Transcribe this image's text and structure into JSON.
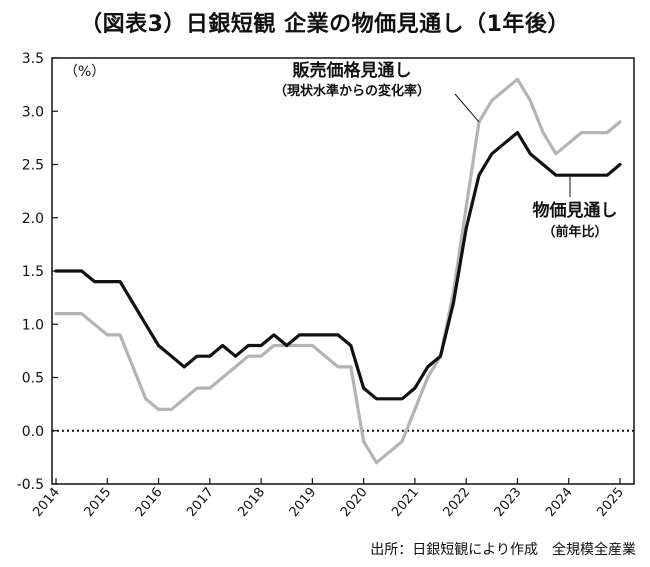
{
  "title": "（図表3）日銀短観 企業の物価見通し（1年後）",
  "source": "出所：日銀短観により作成　全規模全産業",
  "chart_data": {
    "type": "line",
    "unit_label": "（%）",
    "ylim": [
      -0.5,
      3.5
    ],
    "y_ticks": [
      "3.5",
      "3.0",
      "2.5",
      "2.0",
      "1.5",
      "1.0",
      "0.5",
      "0.0",
      "-0.5"
    ],
    "x_ticks": [
      "2014",
      "2015",
      "2016",
      "2017",
      "2018",
      "2019",
      "2020",
      "2021",
      "2022",
      "2023",
      "2024",
      "2025"
    ],
    "x": [
      "2014Q1",
      "2014Q2",
      "2014Q3",
      "2014Q4",
      "2015Q1",
      "2015Q2",
      "2015Q3",
      "2015Q4",
      "2016Q1",
      "2016Q2",
      "2016Q3",
      "2016Q4",
      "2017Q1",
      "2017Q2",
      "2017Q3",
      "2017Q4",
      "2018Q1",
      "2018Q2",
      "2018Q3",
      "2018Q4",
      "2019Q1",
      "2019Q2",
      "2019Q3",
      "2019Q4",
      "2020Q1",
      "2020Q2",
      "2020Q3",
      "2020Q4",
      "2021Q1",
      "2021Q2",
      "2021Q3",
      "2021Q4",
      "2022Q1",
      "2022Q2",
      "2022Q3",
      "2022Q4",
      "2023Q1",
      "2023Q2",
      "2023Q3",
      "2023Q4",
      "2024Q1",
      "2024Q2",
      "2024Q3",
      "2024Q4",
      "2025Q1"
    ],
    "zero_line": "dotted",
    "series": [
      {
        "name": "物価見通し",
        "sub": "（前年比）",
        "color": "#111111",
        "values": [
          1.5,
          1.5,
          1.5,
          1.4,
          1.4,
          1.4,
          1.2,
          1.0,
          0.8,
          0.7,
          0.6,
          0.7,
          0.7,
          0.8,
          0.7,
          0.8,
          0.8,
          0.9,
          0.8,
          0.9,
          0.9,
          0.9,
          0.9,
          0.8,
          0.4,
          0.3,
          0.3,
          0.3,
          0.4,
          0.6,
          0.7,
          1.2,
          1.9,
          2.4,
          2.6,
          2.7,
          2.8,
          2.6,
          2.5,
          2.4,
          2.4,
          2.4,
          2.4,
          2.4,
          2.5
        ]
      },
      {
        "name": "販売価格見通し",
        "sub": "（現状水準からの変化率）",
        "color": "#b4b4b4",
        "values": [
          1.1,
          1.1,
          1.1,
          1.0,
          0.9,
          0.9,
          0.6,
          0.3,
          0.2,
          0.2,
          0.3,
          0.4,
          0.4,
          0.5,
          0.6,
          0.7,
          0.7,
          0.8,
          0.8,
          0.8,
          0.8,
          0.7,
          0.6,
          0.6,
          -0.1,
          -0.3,
          -0.2,
          -0.1,
          0.2,
          0.5,
          0.7,
          1.3,
          2.1,
          2.9,
          3.1,
          3.2,
          3.3,
          3.1,
          2.8,
          2.6,
          2.7,
          2.8,
          2.8,
          2.8,
          2.9
        ]
      }
    ]
  }
}
